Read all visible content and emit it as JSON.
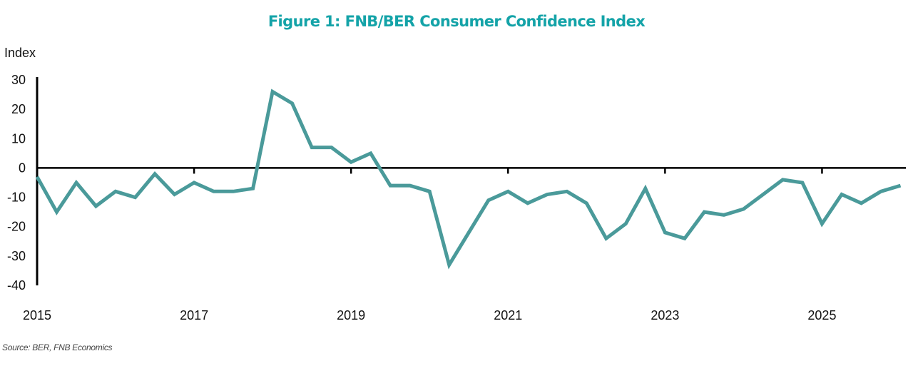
{
  "chart_data": {
    "type": "line",
    "title": "Figure 1: FNB/BER Consumer Confidence Index",
    "ylabel": "Index",
    "xlabel": "",
    "source": "Source: BER, FNB Economics",
    "ylim": [
      -40,
      30
    ],
    "yticks": [
      30,
      20,
      10,
      0,
      -10,
      -20,
      -30,
      -40
    ],
    "xlim": [
      2015.0,
      2026.25
    ],
    "xticks": [
      {
        "value": 2015,
        "label": "2015"
      },
      {
        "value": 2017,
        "label": "2017"
      },
      {
        "value": 2019,
        "label": "2019"
      },
      {
        "value": 2021,
        "label": "2021"
      },
      {
        "value": 2023,
        "label": "2023"
      },
      {
        "value": 2025,
        "label": "2025"
      }
    ],
    "grid": false,
    "legend": "none",
    "series": [
      {
        "name": "FNB/BER Consumer Confidence Index",
        "color": "#4a9a9a",
        "x": [
          "2015Q1",
          "2015Q2",
          "2015Q3",
          "2015Q4",
          "2016Q1",
          "2016Q2",
          "2016Q3",
          "2016Q4",
          "2017Q1",
          "2017Q2",
          "2017Q3",
          "2017Q4",
          "2018Q1",
          "2018Q2",
          "2018Q3",
          "2018Q4",
          "2019Q1",
          "2019Q2",
          "2019Q3",
          "2019Q4",
          "2020Q1",
          "2020Q2",
          "2020Q3",
          "2020Q4",
          "2021Q1",
          "2021Q2",
          "2021Q3",
          "2021Q4",
          "2022Q1",
          "2022Q2",
          "2022Q3",
          "2022Q4",
          "2023Q1",
          "2023Q2",
          "2023Q3",
          "2023Q4",
          "2024Q1",
          "2024Q2",
          "2024Q3",
          "2024Q4",
          "2025Q1",
          "2025Q2",
          "2025Q3",
          "2025Q4",
          "2026Q1"
        ],
        "values": [
          -3,
          -15,
          -5,
          -13,
          -8,
          -10,
          -2,
          -9,
          -5,
          -8,
          -8,
          -7,
          26,
          22,
          7,
          7,
          2,
          5,
          -6,
          -6,
          -8,
          -33,
          -22,
          -11,
          -8,
          -12,
          -9,
          -8,
          -12,
          -24,
          -19,
          -7,
          -22,
          -24,
          -15,
          -16,
          -14,
          -9,
          -4,
          -5,
          -19,
          -9,
          -12,
          -8,
          -6
        ]
      }
    ]
  },
  "colors": {
    "title": "#14a3a8",
    "line": "#4a9a9a",
    "axis": "#000000"
  }
}
